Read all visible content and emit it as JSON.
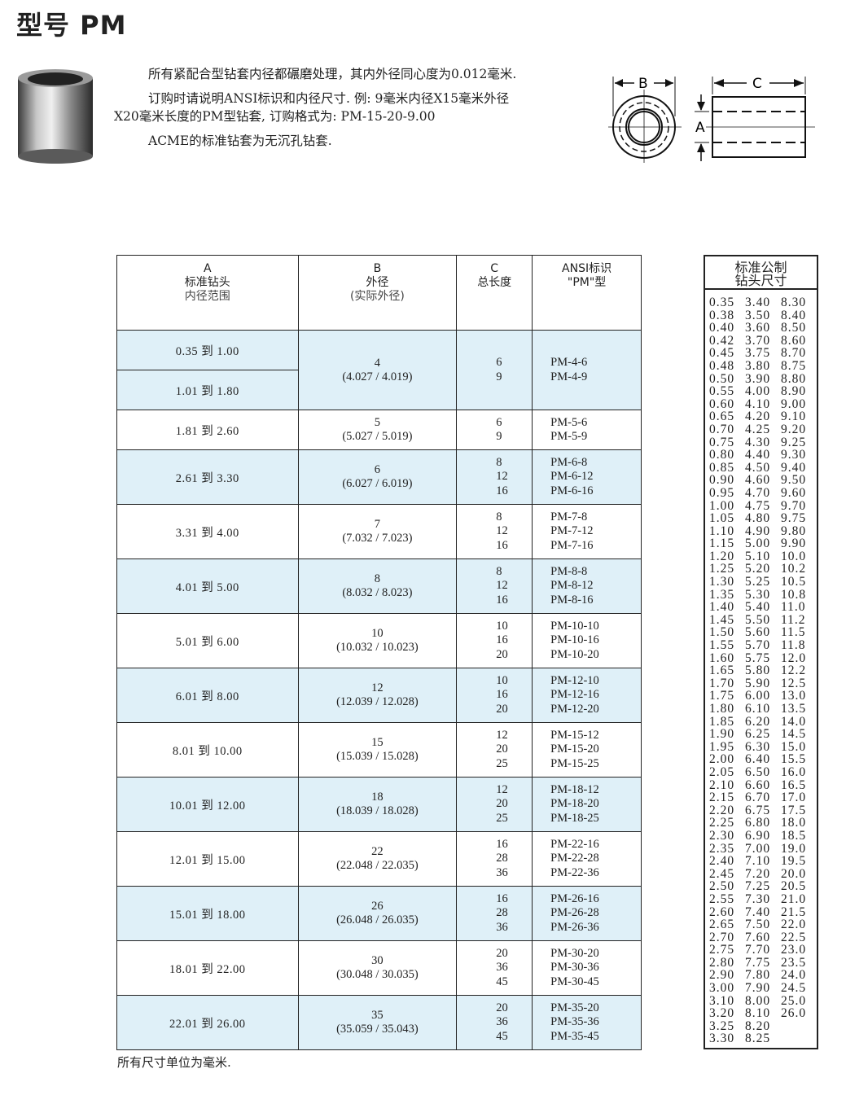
{
  "title": "型号 PM",
  "intro": [
    "所有紧配合型钻套内径都碾磨处理，其内外径同心度为0.012毫米.",
    "订购时请说明ANSI标识和内径尺寸. 例: 9毫米内径X15毫米外径X20毫米长度的PM型钻套, 订购格式为: PM-15-20-9.00",
    "ACME的标准钻套为无沉孔钻套."
  ],
  "drawing": {
    "label_b": "B",
    "label_c": "C",
    "label_a": "A"
  },
  "table": {
    "headers": [
      {
        "letter": "A",
        "line1": "标准钻头",
        "line2": "内径范围"
      },
      {
        "letter": "B",
        "line1": "外径",
        "line2": "(实际外径)"
      },
      {
        "letter": "C",
        "line1": "总长度",
        "line2": ""
      },
      {
        "letter": "ANSI标识",
        "line1": "\"PM\"型",
        "line2": ""
      }
    ],
    "rows": [
      {
        "a": [
          "0.35 到 1.00",
          "1.01 到 1.80"
        ],
        "b": "4",
        "b_range": "(4.027 / 4.019)",
        "c": [
          "6",
          "9"
        ],
        "ansi": [
          "PM-4-6",
          "PM-4-9"
        ]
      },
      {
        "a": [
          "1.81 到 2.60"
        ],
        "b": "5",
        "b_range": "(5.027 / 5.019)",
        "c": [
          "6",
          "9"
        ],
        "ansi": [
          "PM-5-6",
          "PM-5-9"
        ]
      },
      {
        "a": [
          "2.61 到 3.30"
        ],
        "b": "6",
        "b_range": "(6.027 / 6.019)",
        "c": [
          "8",
          "12",
          "16"
        ],
        "ansi": [
          "PM-6-8",
          "PM-6-12",
          "PM-6-16"
        ]
      },
      {
        "a": [
          "3.31 到 4.00"
        ],
        "b": "7",
        "b_range": "(7.032 / 7.023)",
        "c": [
          "8",
          "12",
          "16"
        ],
        "ansi": [
          "PM-7-8",
          "PM-7-12",
          "PM-7-16"
        ]
      },
      {
        "a": [
          "4.01 到 5.00"
        ],
        "b": "8",
        "b_range": "(8.032 / 8.023)",
        "c": [
          "8",
          "12",
          "16"
        ],
        "ansi": [
          "PM-8-8",
          "PM-8-12",
          "PM-8-16"
        ]
      },
      {
        "a": [
          "5.01 到 6.00"
        ],
        "b": "10",
        "b_range": "(10.032 / 10.023)",
        "c": [
          "10",
          "16",
          "20"
        ],
        "ansi": [
          "PM-10-10",
          "PM-10-16",
          "PM-10-20"
        ]
      },
      {
        "a": [
          "6.01 到 8.00"
        ],
        "b": "12",
        "b_range": "(12.039 / 12.028)",
        "c": [
          "10",
          "16",
          "20"
        ],
        "ansi": [
          "PM-12-10",
          "PM-12-16",
          "PM-12-20"
        ]
      },
      {
        "a": [
          "8.01 到 10.00"
        ],
        "b": "15",
        "b_range": "(15.039 / 15.028)",
        "c": [
          "12",
          "20",
          "25"
        ],
        "ansi": [
          "PM-15-12",
          "PM-15-20",
          "PM-15-25"
        ]
      },
      {
        "a": [
          "10.01 到 12.00"
        ],
        "b": "18",
        "b_range": "(18.039 / 18.028)",
        "c": [
          "12",
          "20",
          "25"
        ],
        "ansi": [
          "PM-18-12",
          "PM-18-20",
          "PM-18-25"
        ]
      },
      {
        "a": [
          "12.01 到 15.00"
        ],
        "b": "22",
        "b_range": "(22.048 / 22.035)",
        "c": [
          "16",
          "28",
          "36"
        ],
        "ansi": [
          "PM-22-16",
          "PM-22-28",
          "PM-22-36"
        ]
      },
      {
        "a": [
          "15.01 到 18.00"
        ],
        "b": "26",
        "b_range": "(26.048 / 26.035)",
        "c": [
          "16",
          "28",
          "36"
        ],
        "ansi": [
          "PM-26-16",
          "PM-26-28",
          "PM-26-36"
        ]
      },
      {
        "a": [
          "18.01 到 22.00"
        ],
        "b": "30",
        "b_range": "(30.048 / 30.035)",
        "c": [
          "20",
          "36",
          "45"
        ],
        "ansi": [
          "PM-30-20",
          "PM-30-36",
          "PM-30-45"
        ]
      },
      {
        "a": [
          "22.01 到 26.00"
        ],
        "b": "35",
        "b_range": "(35.059 / 35.043)",
        "c": [
          "20",
          "36",
          "45"
        ],
        "ansi": [
          "PM-35-20",
          "PM-35-36",
          "PM-35-45"
        ]
      }
    ],
    "row_colors": {
      "shaded": "#dff0f8",
      "plain": "#ffffff"
    }
  },
  "footnote": "所有尺寸单位为毫米.",
  "side": {
    "title_line1": "标准公制",
    "title_line2": "钻头尺寸",
    "columns": [
      [
        "0.35",
        "0.38",
        "0.40",
        "0.42",
        "0.45",
        "0.48",
        "0.50",
        "0.55",
        "0.60",
        "0.65",
        "0.70",
        "0.75",
        "0.80",
        "0.85",
        "0.90",
        "0.95",
        "1.00",
        "1.05",
        "1.10",
        "1.15",
        "1.20",
        "1.25",
        "1.30",
        "1.35",
        "1.40",
        "1.45",
        "1.50",
        "1.55",
        "1.60",
        "1.65",
        "1.70",
        "1.75",
        "1.80",
        "1.85",
        "1.90",
        "1.95",
        "2.00",
        "2.05",
        "2.10",
        "2.15",
        "2.20",
        "2.25",
        "2.30",
        "2.35",
        "2.40",
        "2.45",
        "2.50",
        "2.55",
        "2.60",
        "2.65",
        "2.70",
        "2.75",
        "2.80",
        "2.90",
        "3.00",
        "3.10",
        "3.20",
        "3.25",
        "3.30"
      ],
      [
        "3.40",
        "3.50",
        "3.60",
        "3.70",
        "3.75",
        "3.80",
        "3.90",
        "4.00",
        "4.10",
        "4.20",
        "4.25",
        "4.30",
        "4.40",
        "4.50",
        "4.60",
        "4.70",
        "4.75",
        "4.80",
        "4.90",
        "5.00",
        "5.10",
        "5.20",
        "5.25",
        "5.30",
        "5.40",
        "5.50",
        "5.60",
        "5.70",
        "5.75",
        "5.80",
        "5.90",
        "6.00",
        "6.10",
        "6.20",
        "6.25",
        "6.30",
        "6.40",
        "6.50",
        "6.60",
        "6.70",
        "6.75",
        "6.80",
        "6.90",
        "7.00",
        "7.10",
        "7.20",
        "7.25",
        "7.30",
        "7.40",
        "7.50",
        "7.60",
        "7.70",
        "7.75",
        "7.80",
        "7.90",
        "8.00",
        "8.10",
        "8.20",
        "8.25"
      ],
      [
        "8.30",
        "8.40",
        "8.50",
        "8.60",
        "8.70",
        "8.75",
        "8.80",
        "8.90",
        "9.00",
        "9.10",
        "9.20",
        "9.25",
        "9.30",
        "9.40",
        "9.50",
        "9.60",
        "9.70",
        "9.75",
        "9.80",
        "9.90",
        "10.0",
        "10.2",
        "10.5",
        "10.8",
        "11.0",
        "11.2",
        "11.5",
        "11.8",
        "12.0",
        "12.2",
        "12.5",
        "13.0",
        "13.5",
        "14.0",
        "14.5",
        "15.0",
        "15.5",
        "16.0",
        "16.5",
        "17.0",
        "17.5",
        "18.0",
        "18.5",
        "19.0",
        "19.5",
        "20.0",
        "20.5",
        "21.0",
        "21.5",
        "22.0",
        "22.5",
        "23.0",
        "23.5",
        "24.0",
        "24.5",
        "25.0",
        "26.0"
      ]
    ]
  }
}
